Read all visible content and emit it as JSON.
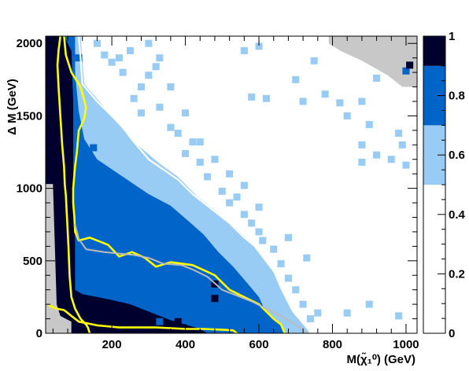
{
  "chart_data": {
    "type": "heatmap",
    "title": "",
    "xlabel": "M(χ̃₁⁰) (GeV)",
    "ylabel": "Δ M (GeV)",
    "xlim": [
      20,
      1030
    ],
    "ylim": [
      0,
      2050
    ],
    "x_ticks": [
      200,
      400,
      600,
      800,
      1000
    ],
    "y_ticks": [
      0,
      500,
      1000,
      1500,
      2000
    ],
    "colorbar": {
      "range": [
        0,
        1
      ],
      "ticks": [
        0,
        0.2,
        0.4,
        0.6,
        0.8,
        1
      ],
      "tick_labels": [
        "0",
        "0.2",
        "0.4",
        "0.6",
        "0.8",
        "1"
      ],
      "bands": [
        {
          "from": 0.0,
          "to": 0.5,
          "color": "#ffffff"
        },
        {
          "from": 0.5,
          "to": 0.7,
          "color": "#99ccf5"
        },
        {
          "from": 0.7,
          "to": 0.9,
          "color": "#0064c8"
        },
        {
          "from": 0.9,
          "to": 1.0,
          "color": "#00002e"
        }
      ]
    },
    "no_data_color": "#c8c8c8",
    "regions": [
      {
        "level": "light",
        "points": [
          [
            80,
            2050
          ],
          [
            115,
            2050
          ],
          [
            125,
            1720
          ],
          [
            200,
            1500
          ],
          [
            260,
            1320
          ],
          [
            330,
            1170
          ],
          [
            380,
            1080
          ],
          [
            430,
            950
          ],
          [
            480,
            850
          ],
          [
            540,
            720
          ],
          [
            580,
            620
          ],
          [
            610,
            520
          ],
          [
            640,
            420
          ],
          [
            660,
            300
          ],
          [
            690,
            150
          ],
          [
            720,
            60
          ],
          [
            740,
            0
          ],
          [
            80,
            0
          ]
        ]
      },
      {
        "level": "medium",
        "points": [
          [
            70,
            2050
          ],
          [
            100,
            2050
          ],
          [
            100,
            1800
          ],
          [
            110,
            1530
          ],
          [
            125,
            1340
          ],
          [
            160,
            1200
          ],
          [
            230,
            1080
          ],
          [
            300,
            960
          ],
          [
            360,
            880
          ],
          [
            410,
            770
          ],
          [
            450,
            680
          ],
          [
            490,
            560
          ],
          [
            530,
            460
          ],
          [
            560,
            370
          ],
          [
            600,
            250
          ],
          [
            620,
            140
          ],
          [
            660,
            60
          ],
          [
            670,
            0
          ],
          [
            70,
            0
          ]
        ]
      },
      {
        "level": "dark",
        "points": [
          [
            20,
            2050
          ],
          [
            70,
            2050
          ],
          [
            90,
            1950
          ],
          [
            95,
            1600
          ],
          [
            95,
            1020
          ],
          [
            100,
            750
          ],
          [
            100,
            300
          ],
          [
            120,
            270
          ],
          [
            200,
            230
          ],
          [
            250,
            200
          ],
          [
            320,
            130
          ],
          [
            360,
            90
          ],
          [
            400,
            60
          ],
          [
            440,
            30
          ],
          [
            460,
            0
          ],
          [
            20,
            0
          ]
        ]
      },
      {
        "level": "nodata",
        "points": [
          [
            20,
            1030
          ],
          [
            40,
            1030
          ],
          [
            45,
            600
          ],
          [
            50,
            200
          ],
          [
            60,
            120
          ],
          [
            90,
            80
          ],
          [
            90,
            0
          ],
          [
            20,
            0
          ]
        ]
      },
      {
        "level": "nodata",
        "points": [
          [
            790,
            2050
          ],
          [
            1030,
            2050
          ],
          [
            1030,
            1700
          ],
          [
            990,
            1700
          ],
          [
            950,
            1780
          ],
          [
            880,
            1880
          ],
          [
            820,
            1950
          ],
          [
            790,
            2000
          ]
        ]
      }
    ],
    "cells_light": [
      [
        160,
        2000
      ],
      [
        180,
        1920
      ],
      [
        200,
        1870
      ],
      [
        230,
        1800
      ],
      [
        220,
        1900
      ],
      [
        250,
        1950
      ],
      [
        280,
        1700
      ],
      [
        260,
        1620
      ],
      [
        300,
        1780
      ],
      [
        320,
        1840
      ],
      [
        280,
        1520
      ],
      [
        330,
        1560
      ],
      [
        360,
        1420
      ],
      [
        380,
        1380
      ],
      [
        420,
        1320
      ],
      [
        400,
        1240
      ],
      [
        440,
        1180
      ],
      [
        460,
        1080
      ],
      [
        500,
        980
      ],
      [
        520,
        900
      ],
      [
        540,
        940
      ],
      [
        560,
        820
      ],
      [
        580,
        760
      ],
      [
        600,
        700
      ],
      [
        610,
        640
      ],
      [
        640,
        580
      ],
      [
        660,
        480
      ],
      [
        680,
        380
      ],
      [
        700,
        300
      ],
      [
        720,
        200
      ],
      [
        740,
        100
      ],
      [
        760,
        140
      ],
      [
        840,
        140
      ],
      [
        900,
        200
      ],
      [
        980,
        120
      ],
      [
        730,
        520
      ],
      [
        680,
        660
      ],
      [
        600,
        870
      ],
      [
        560,
        1020
      ],
      [
        520,
        1100
      ],
      [
        480,
        1200
      ],
      [
        440,
        1320
      ],
      [
        400,
        1520
      ],
      [
        360,
        1700
      ],
      [
        330,
        1900
      ],
      [
        300,
        2000
      ]
    ],
    "cells_light_scattered": [
      [
        560,
        1950
      ],
      [
        600,
        1980
      ],
      [
        700,
        1750
      ],
      [
        750,
        1880
      ],
      [
        780,
        1650
      ],
      [
        820,
        1590
      ],
      [
        880,
        1600
      ],
      [
        900,
        1440
      ],
      [
        880,
        1300
      ],
      [
        920,
        1230
      ],
      [
        960,
        1200
      ],
      [
        880,
        1180
      ],
      [
        980,
        1380
      ],
      [
        990,
        1300
      ],
      [
        1000,
        1160
      ],
      [
        720,
        1600
      ],
      [
        620,
        1620
      ],
      [
        580,
        1630
      ],
      [
        840,
        1500
      ],
      [
        920,
        1760
      ]
    ],
    "cells_medium": [
      [
        150,
        1280
      ],
      [
        110,
        1900
      ],
      [
        310,
        200
      ],
      [
        330,
        80
      ],
      [
        440,
        500
      ],
      [
        470,
        380
      ],
      [
        560,
        320
      ],
      [
        580,
        160
      ],
      [
        600,
        80
      ],
      [
        650,
        40
      ],
      [
        1000,
        1810
      ],
      [
        480,
        210
      ],
      [
        520,
        120
      ]
    ],
    "cells_dark": [
      [
        380,
        80
      ],
      [
        480,
        340
      ],
      [
        480,
        240
      ],
      [
        80,
        1280
      ],
      [
        75,
        1500
      ],
      [
        70,
        1700
      ],
      [
        1010,
        1850
      ]
    ],
    "curves": [
      {
        "name": "yellow-outer",
        "color": "#ffff00",
        "width": 2.6,
        "points": [
          [
            30,
            190
          ],
          [
            50,
            170
          ],
          [
            70,
            160
          ],
          [
            90,
            120
          ],
          [
            110,
            80
          ],
          [
            160,
            55
          ],
          [
            220,
            40
          ],
          [
            260,
            40
          ],
          [
            320,
            40
          ],
          [
            400,
            30
          ],
          [
            450,
            30
          ],
          [
            500,
            25
          ],
          [
            530,
            20
          ],
          [
            540,
            0
          ]
        ]
      },
      {
        "name": "yellow-left",
        "color": "#ffff00",
        "width": 2.6,
        "points": [
          [
            60,
            2050
          ],
          [
            55,
            1950
          ],
          [
            52,
            1850
          ],
          [
            55,
            1700
          ],
          [
            60,
            1500
          ],
          [
            65,
            1300
          ],
          [
            70,
            1150
          ],
          [
            72,
            1030
          ],
          [
            75,
            950
          ],
          [
            78,
            800
          ],
          [
            82,
            600
          ],
          [
            85,
            400
          ],
          [
            90,
            250
          ],
          [
            100,
            170
          ],
          [
            115,
            100
          ],
          [
            130,
            60
          ],
          [
            135,
            40
          ],
          [
            140,
            0
          ]
        ]
      },
      {
        "name": "yellow-inner-left",
        "color": "#ffff00",
        "width": 2.6,
        "points": [
          [
            70,
            2050
          ],
          [
            75,
            1920
          ],
          [
            90,
            1800
          ],
          [
            115,
            1700
          ],
          [
            130,
            1560
          ],
          [
            125,
            1480
          ],
          [
            110,
            1400
          ],
          [
            105,
            1250
          ],
          [
            100,
            1150
          ],
          [
            95,
            1000
          ],
          [
            95,
            900
          ],
          [
            98,
            800
          ],
          [
            100,
            700
          ],
          [
            110,
            640
          ],
          [
            140,
            660
          ],
          [
            190,
            610
          ],
          [
            220,
            530
          ],
          [
            255,
            560
          ],
          [
            290,
            520
          ],
          [
            320,
            460
          ],
          [
            360,
            490
          ],
          [
            420,
            470
          ],
          [
            480,
            400
          ],
          [
            520,
            300
          ],
          [
            560,
            250
          ],
          [
            600,
            200
          ],
          [
            620,
            150
          ],
          [
            640,
            100
          ],
          [
            660,
            60
          ],
          [
            670,
            0
          ]
        ]
      },
      {
        "name": "gray-curve",
        "color": "#bbbbbb",
        "width": 2.0,
        "points": [
          [
            100,
            750
          ],
          [
            110,
            650
          ],
          [
            130,
            580
          ],
          [
            180,
            560
          ],
          [
            260,
            540
          ],
          [
            300,
            520
          ],
          [
            340,
            480
          ],
          [
            390,
            470
          ],
          [
            420,
            440
          ],
          [
            460,
            390
          ],
          [
            500,
            300
          ],
          [
            540,
            260
          ],
          [
            580,
            220
          ],
          [
            620,
            170
          ],
          [
            660,
            120
          ],
          [
            700,
            60
          ],
          [
            730,
            0
          ]
        ]
      },
      {
        "name": "white-contour",
        "color": "#ffffff",
        "width": 2.2,
        "points": [
          [
            110,
            2050
          ],
          [
            115,
            1900
          ],
          [
            120,
            1720
          ],
          [
            160,
            1600
          ],
          [
            200,
            1500
          ],
          [
            230,
            1420
          ],
          [
            260,
            1320
          ],
          [
            300,
            1200
          ],
          [
            340,
            1130
          ],
          [
            380,
            1060
          ],
          [
            420,
            960
          ],
          [
            470,
            860
          ],
          [
            520,
            760
          ],
          [
            560,
            660
          ],
          [
            600,
            580
          ],
          [
            620,
            500
          ],
          [
            650,
            420
          ],
          [
            670,
            320
          ],
          [
            690,
            200
          ],
          [
            720,
            100
          ],
          [
            740,
            0
          ]
        ]
      }
    ]
  }
}
